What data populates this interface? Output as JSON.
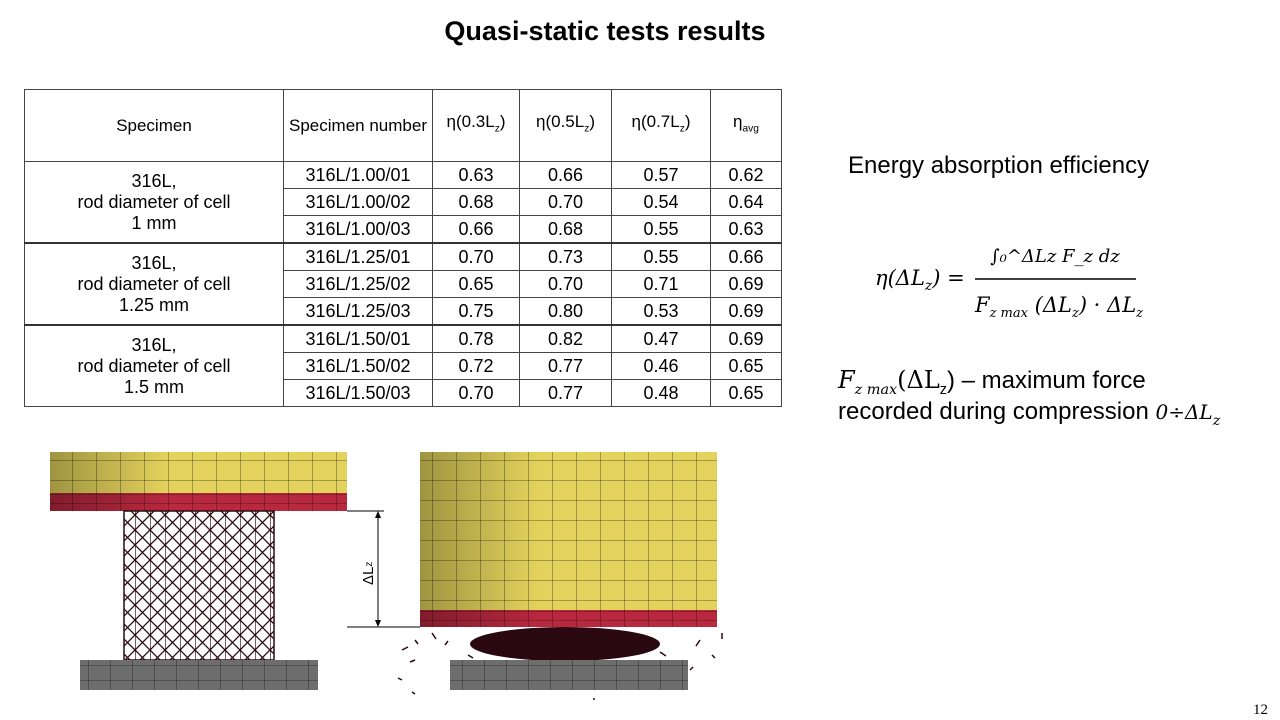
{
  "title": "Quasi-static tests results",
  "table": {
    "headers": {
      "specimen": "Specimen",
      "number": "Specimen number",
      "eta03": "η(0.3L",
      "eta05": "η(0.5L",
      "eta07": "η(0.7L",
      "sub_z": "z",
      "close": ")",
      "avg": "η",
      "avg_sub": "avg"
    },
    "groups": [
      {
        "label": [
          "316L,",
          "rod diameter of cell",
          "1 mm"
        ],
        "rows": [
          [
            "316L/1.00/01",
            "0.63",
            "0.66",
            "0.57",
            "0.62"
          ],
          [
            "316L/1.00/02",
            "0.68",
            "0.70",
            "0.54",
            "0.64"
          ],
          [
            "316L/1.00/03",
            "0.66",
            "0.68",
            "0.55",
            "0.63"
          ]
        ]
      },
      {
        "label": [
          "316L,",
          "rod diameter of cell",
          "1.25 mm"
        ],
        "rows": [
          [
            "316L/1.25/01",
            "0.70",
            "0.73",
            "0.55",
            "0.66"
          ],
          [
            "316L/1.25/02",
            "0.65",
            "0.70",
            "0.71",
            "0.69"
          ],
          [
            "316L/1.25/03",
            "0.75",
            "0.80",
            "0.53",
            "0.69"
          ]
        ]
      },
      {
        "label": [
          "316L,",
          "rod diameter of cell",
          "1.5 mm"
        ],
        "rows": [
          [
            "316L/1.50/01",
            "0.78",
            "0.82",
            "0.47",
            "0.69"
          ],
          [
            "316L/1.50/02",
            "0.72",
            "0.77",
            "0.46",
            "0.65"
          ],
          [
            "316L/1.50/03",
            "0.70",
            "0.77",
            "0.48",
            "0.65"
          ]
        ]
      }
    ]
  },
  "energy_label": "Energy absorption  efficiency",
  "formula": {
    "lhs": "η(ΔL",
    "lhs_sub": "z",
    "lhs_close": ") =",
    "num": "∫₀^ΔLz F_z dz",
    "den": "F_z max (ΔL_z) · ΔL_z"
  },
  "fmax_line1_sym": "F",
  "fmax_line1_sub": "z max",
  "fmax_line1_arg": "(ΔL",
  "fmax_line1_argsub": "z",
  "fmax_line1_text": ") – maximum force",
  "fmax_line2_text": "recorded during compression ",
  "fmax_line2_sym": "0÷ΔL",
  "fmax_line2_sub": "z",
  "diagram_label": "ΔL",
  "diagram_label_sub": "z",
  "page_number": "12",
  "colors": {
    "yellow": "#e3d35c",
    "red": "#b8283f",
    "gray": "#6d6d6d"
  }
}
